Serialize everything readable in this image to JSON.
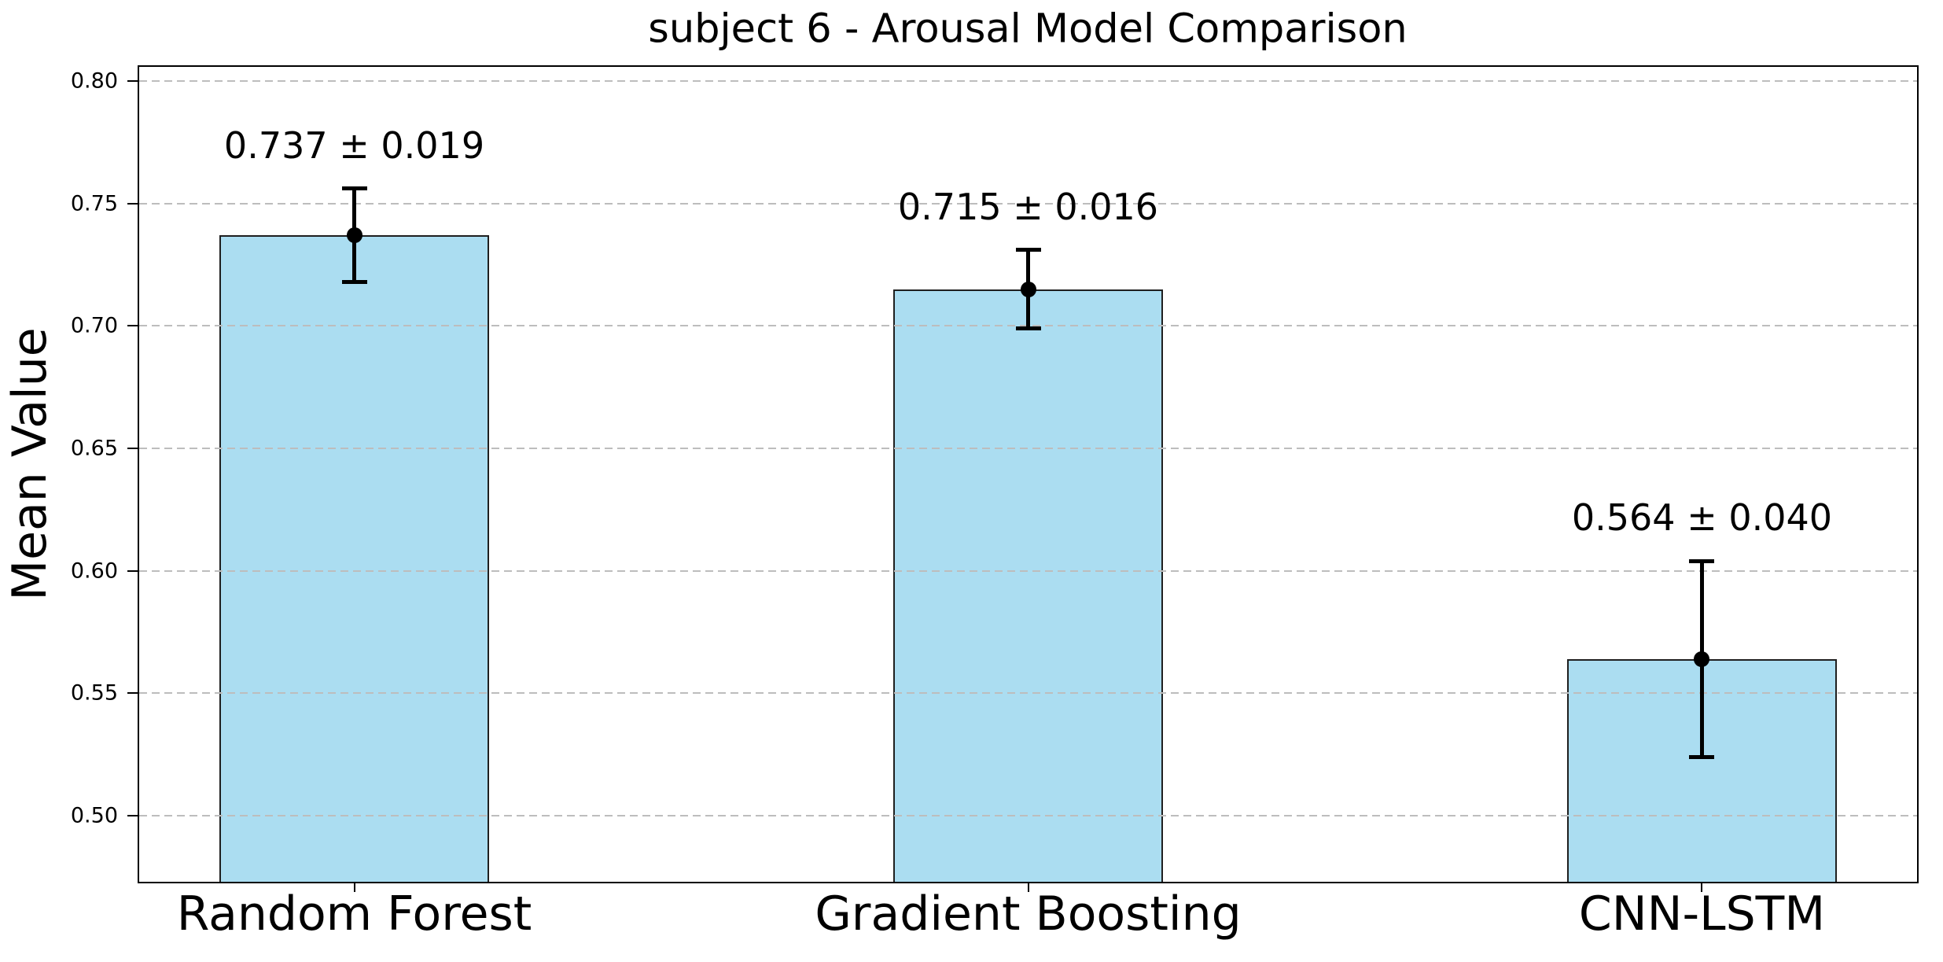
{
  "chart_data": {
    "type": "bar",
    "title": "subject 6 - Arousal Model Comparison",
    "xlabel": "",
    "ylabel": "Mean Value",
    "categories": [
      "Random Forest",
      "Gradient Boosting",
      "CNN-LSTM"
    ],
    "series": [
      {
        "name": "Mean Value",
        "values": [
          0.737,
          0.715,
          0.564
        ],
        "errors": [
          0.019,
          0.016,
          0.04
        ]
      }
    ],
    "bar_labels": [
      "0.737 ± 0.019",
      "0.715 ± 0.016",
      "0.564 ± 0.040"
    ],
    "yticks": [
      0.8,
      0.75,
      0.7,
      0.65,
      0.6,
      0.55,
      0.5
    ],
    "ytick_labels": [
      "0.80",
      "0.75",
      "0.70",
      "0.65",
      "0.60",
      "0.55",
      "0.50"
    ],
    "ylim": [
      0.4724,
      0.8064
    ],
    "xlim": [
      -0.3215,
      2.3215
    ],
    "bar_width": 0.4,
    "grid": {
      "axis": "y",
      "linestyle": "dashed",
      "on": true,
      "above_bars": true
    },
    "colors": {
      "bar_fill": "#ABDDF1",
      "bar_edge": "#1f1f1f",
      "error_bar": "#000000",
      "grid_line": "#bdbdbd",
      "text": "#000000",
      "background": "#ffffff"
    }
  }
}
